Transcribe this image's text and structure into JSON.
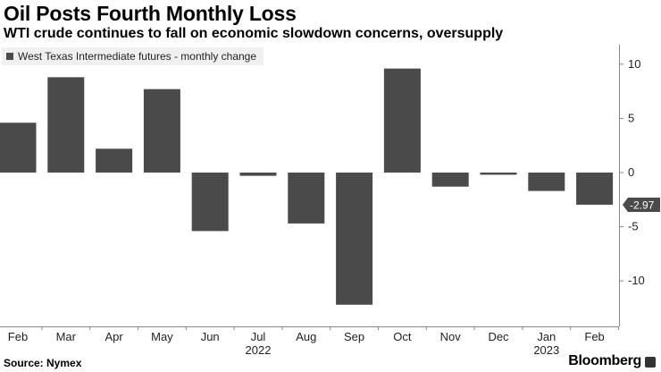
{
  "header": {
    "title": "Oil Posts Fourth Monthly Loss",
    "subtitle": "WTI crude continues to fall on economic slowdown concerns, oversupply"
  },
  "footer": {
    "source": "Source: Nymex",
    "brand": "Bloomberg",
    "brand_icon": "bloomberg-logo-icon"
  },
  "chart_data": {
    "type": "bar",
    "categories": [
      "Feb",
      "Mar",
      "Apr",
      "May",
      "Jun",
      "Jul",
      "Aug",
      "Sep",
      "Oct",
      "Nov",
      "Dec",
      "Jan",
      "Feb"
    ],
    "year_labels": [
      {
        "label": "2022",
        "category_index": 5
      },
      {
        "label": "2023",
        "category_index": 11
      }
    ],
    "series": [
      {
        "name": "West Texas Intermediate futures - monthly change",
        "values": [
          4.6,
          8.8,
          2.2,
          7.7,
          -5.4,
          -0.3,
          -4.7,
          -12.2,
          9.6,
          -1.3,
          -0.2,
          -1.7,
          -2.97
        ],
        "color": "#4a4a4a"
      }
    ],
    "ylim": [
      -14.2,
      11.8
    ],
    "yticks": [
      10,
      5,
      0,
      -5,
      -10
    ],
    "ytick_labels": [
      "10",
      "5",
      "0",
      "-5",
      "-10"
    ],
    "last_value_label": "-2.97",
    "grid": false,
    "legend_position": "top-left",
    "xlabel": "",
    "ylabel": ""
  }
}
